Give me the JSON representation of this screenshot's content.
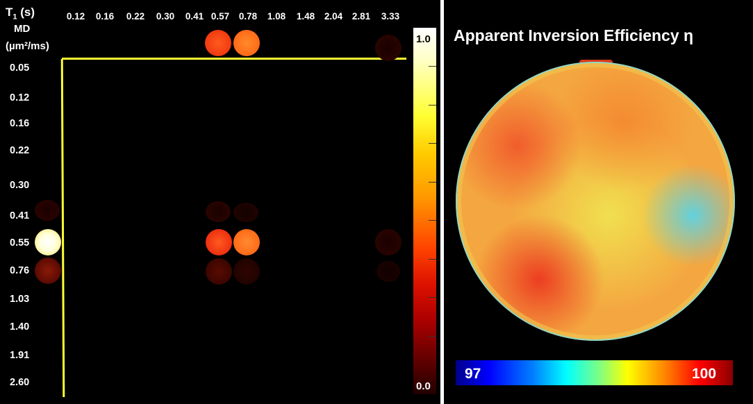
{
  "left_panel": {
    "t1_label": "T",
    "t1_sub": "1",
    "t1_unit": " (s)",
    "md_label": "MD",
    "md_unit": "(µm²/ms)",
    "t1_values": [
      "0.12",
      "0.16",
      "0.22",
      "0.30",
      "0.41",
      "0.57",
      "0.78",
      "1.08",
      "1.48",
      "2.04",
      "2.81",
      "3.33"
    ],
    "md_values": [
      "0.05",
      "0.12",
      "0.16",
      "0.22",
      "0.30",
      "0.41",
      "0.55",
      "0.76",
      "1.03",
      "1.40",
      "1.91",
      "2.60"
    ],
    "line_color": "#ffff33",
    "colorbar": {
      "max": "1.0",
      "min": "0.0",
      "colors": [
        "#ffffff",
        "#ffff33",
        "#ff9900",
        "#dd1100",
        "#220000"
      ]
    }
  },
  "right_panel": {
    "title": "Apparent Inversion Efficiency η",
    "colorbar": {
      "min": "97",
      "max": "100",
      "colors": [
        "#00008b",
        "#0000ff",
        "#00ffff",
        "#ffff00",
        "#ff0000",
        "#8b0000"
      ]
    }
  }
}
